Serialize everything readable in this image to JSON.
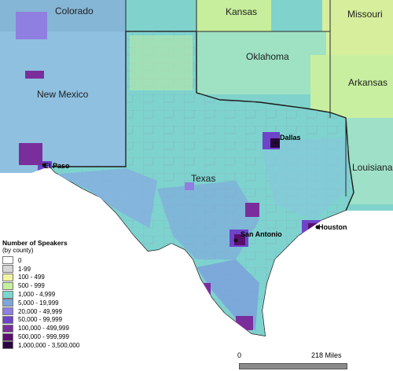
{
  "states": [
    "Colorado",
    "Kansas",
    "Missouri",
    "Oklahoma",
    "Arkansas",
    "New Mexico",
    "Texas",
    "Louisiana"
  ],
  "cities": [
    "Dallas",
    "El Paso",
    "San Antonio",
    "Houston"
  ],
  "legend": {
    "title": "Number of Speakers",
    "subtitle": "(by county)",
    "items": [
      {
        "label": "0",
        "color": "#ffffff"
      },
      {
        "label": "1-99",
        "color": "#d6d6d6"
      },
      {
        "label": "100 - 499",
        "color": "#f2f4a2"
      },
      {
        "label": "500 - 999",
        "color": "#c6ef9a"
      },
      {
        "label": "1,000 - 4,999",
        "color": "#78d8cf"
      },
      {
        "label": "5,000 - 19,999",
        "color": "#7fa6db"
      },
      {
        "label": "20,000 - 49,999",
        "color": "#8f7fe0"
      },
      {
        "label": "50,000 - 99,999",
        "color": "#6e44c9"
      },
      {
        "label": "100,000 - 499,999",
        "color": "#7a2e9b"
      },
      {
        "label": "500,000 - 999,999",
        "color": "#5a0f6e"
      },
      {
        "label": "1,000,000 - 3,500,000",
        "color": "#2a0440"
      }
    ]
  },
  "scale": {
    "start": "0",
    "end": "218 Miles"
  }
}
